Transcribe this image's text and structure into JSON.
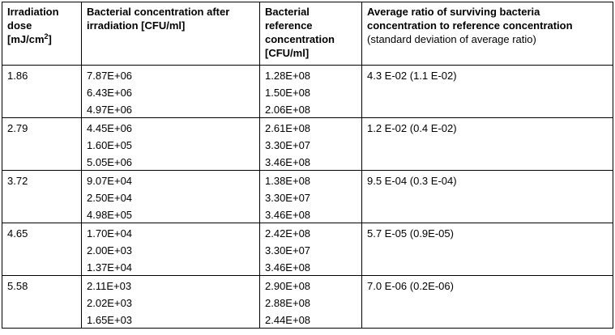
{
  "headers": {
    "dose": {
      "line1": "Irradiation",
      "line2": "dose",
      "line3_prefix": "[mJ/cm",
      "line3_sup": "2",
      "line3_suffix": "]"
    },
    "after": {
      "line1": "Bacterial concentration after",
      "line2": "irradiation [CFU/ml]"
    },
    "reference": {
      "line1": "Bacterial",
      "line2": "reference",
      "line3": "concentration",
      "line4": "[CFU/ml]"
    },
    "ratio": {
      "line1": "Average ratio of surviving bacteria",
      "line2": "concentration to reference concentration",
      "line3": "(standard deviation of average ratio)"
    }
  },
  "rows": [
    {
      "dose": "1.86",
      "after": [
        "7.87E+06",
        "6.43E+06",
        "4.97E+06"
      ],
      "reference": [
        "1.28E+08",
        "1.50E+08",
        "2.06E+08"
      ],
      "ratio": "4.3 E-02 (1.1 E-02)"
    },
    {
      "dose": "2.79",
      "after": [
        "4.45E+06",
        "1.60E+05",
        "5.05E+06"
      ],
      "reference": [
        "2.61E+08",
        "3.30E+07",
        "3.46E+08"
      ],
      "ratio": "1.2 E-02 (0.4 E-02)"
    },
    {
      "dose": "3.72",
      "after": [
        "9.07E+04",
        "2.50E+04",
        "4.98E+05"
      ],
      "reference": [
        "1.38E+08",
        "3.30E+07",
        "3.46E+08"
      ],
      "ratio": "9.5 E-04 (0.3 E-04)"
    },
    {
      "dose": "4.65",
      "after": [
        "1.70E+04",
        "2.00E+03",
        "1.37E+04"
      ],
      "reference": [
        "2.42E+08",
        "3.30E+07",
        "3.46E+08"
      ],
      "ratio": "5.7 E-05 (0.9E-05)"
    },
    {
      "dose": "5.58",
      "after": [
        "2.11E+03",
        "2.02E+03",
        "1.65E+03"
      ],
      "reference": [
        "2.90E+08",
        "2.88E+08",
        "2.44E+08"
      ],
      "ratio": "7.0 E-06 (0.2E-06)"
    }
  ]
}
